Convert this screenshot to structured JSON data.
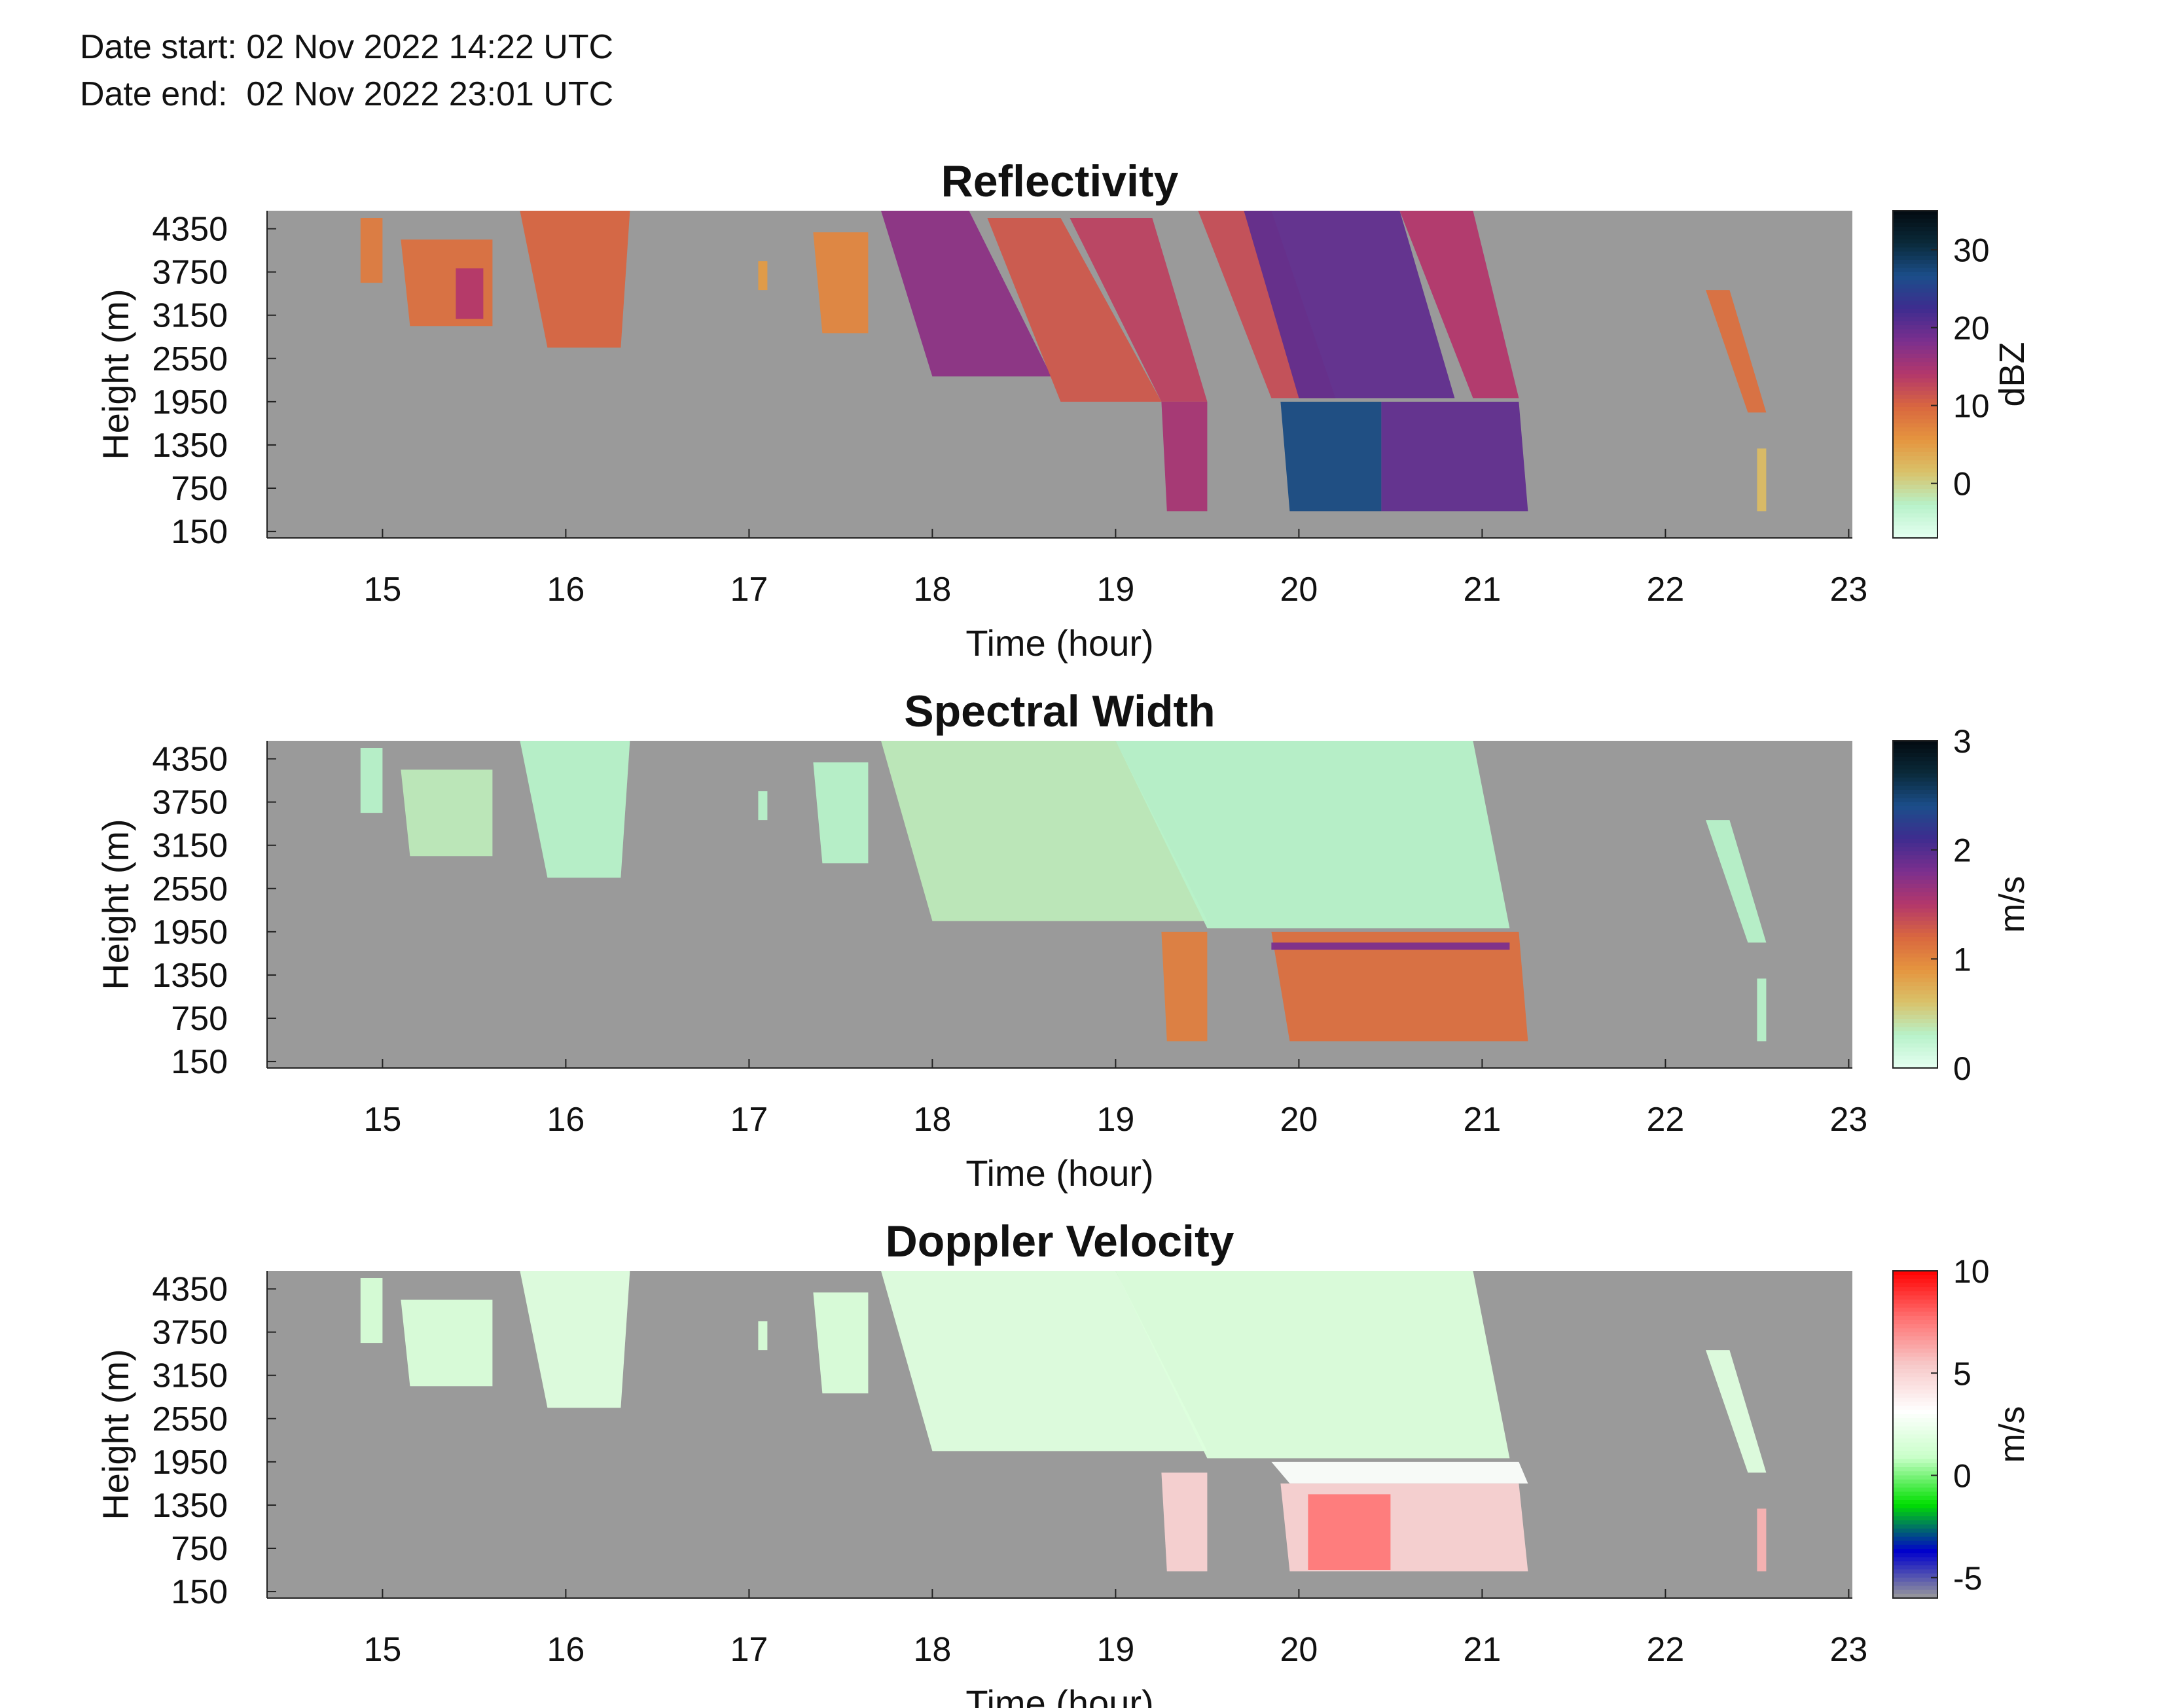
{
  "header": {
    "date_start": "Date start: 02 Nov 2022 14:22 UTC",
    "date_end": "Date end:  02 Nov 2022 23:01 UTC"
  },
  "chart_data": [
    {
      "type": "heatmap",
      "title": "Reflectivity",
      "xlabel": "Time (hour)",
      "ylabel": "Height (m)",
      "xlim": [
        14.37,
        23.02
      ],
      "ylim": [
        60,
        4600
      ],
      "x_ticks": [
        15,
        16,
        17,
        18,
        19,
        20,
        21,
        22,
        23
      ],
      "y_ticks": [
        150,
        750,
        1350,
        1950,
        2550,
        3150,
        3750,
        4350
      ],
      "colorbar": {
        "label": "dBZ",
        "range": [
          -7,
          35
        ],
        "ticks": [
          0,
          10,
          20,
          30
        ],
        "colormap": [
          "#e6fff2",
          "#b7f2c9",
          "#d9c26a",
          "#e5953f",
          "#d9673f",
          "#b3376b",
          "#7c2f8e",
          "#3e2c8f",
          "#1b4e8a",
          "#0a2a3a",
          "#020a10"
        ]
      },
      "regions": [
        {
          "t0": 14.88,
          "t1": 15.0,
          "tb0": 14.88,
          "tb1": 15.0,
          "h_top": 4500,
          "h_bot": 3600,
          "value": 8
        },
        {
          "t0": 15.1,
          "t1": 15.6,
          "tb0": 15.15,
          "tb1": 15.6,
          "h_top": 4200,
          "h_bot": 3000,
          "value": 9
        },
        {
          "t0": 15.4,
          "t1": 15.55,
          "tb0": 15.4,
          "tb1": 15.55,
          "h_top": 3800,
          "h_bot": 3100,
          "value": 14
        },
        {
          "t0": 15.75,
          "t1": 16.35,
          "tb0": 15.9,
          "tb1": 16.3,
          "h_top": 4600,
          "h_bot": 2700,
          "value": 10
        },
        {
          "t0": 17.05,
          "t1": 17.1,
          "tb0": 17.05,
          "tb1": 17.1,
          "h_top": 3900,
          "h_bot": 3500,
          "value": 5
        },
        {
          "t0": 17.35,
          "t1": 17.65,
          "tb0": 17.4,
          "tb1": 17.65,
          "h_top": 4300,
          "h_bot": 2900,
          "value": 7
        },
        {
          "t0": 17.72,
          "t1": 18.2,
          "tb0": 18.0,
          "tb1": 18.65,
          "h_top": 4600,
          "h_bot": 2300,
          "value": 17
        },
        {
          "t0": 18.3,
          "t1": 18.7,
          "tb0": 18.7,
          "tb1": 19.25,
          "h_top": 4500,
          "h_bot": 1950,
          "value": 11
        },
        {
          "t0": 18.75,
          "t1": 19.2,
          "tb0": 19.25,
          "tb1": 19.5,
          "h_top": 4500,
          "h_bot": 1950,
          "value": 13
        },
        {
          "t0": 19.25,
          "t1": 19.5,
          "tb0": 19.28,
          "tb1": 19.5,
          "h_top": 1950,
          "h_bot": 430,
          "value": 15
        },
        {
          "t0": 19.45,
          "t1": 19.85,
          "tb0": 19.85,
          "tb1": 20.2,
          "h_top": 4600,
          "h_bot": 2000,
          "value": 12
        },
        {
          "t0": 19.7,
          "t1": 20.55,
          "tb0": 20.0,
          "tb1": 20.85,
          "h_top": 4600,
          "h_bot": 2000,
          "value": 20
        },
        {
          "t0": 20.55,
          "t1": 20.95,
          "tb0": 20.95,
          "tb1": 21.2,
          "h_top": 4600,
          "h_bot": 2000,
          "value": 14
        },
        {
          "t0": 19.9,
          "t1": 20.45,
          "tb0": 19.95,
          "tb1": 20.45,
          "h_top": 1950,
          "h_bot": 430,
          "value": 27
        },
        {
          "t0": 20.45,
          "t1": 21.2,
          "tb0": 20.45,
          "tb1": 21.25,
          "h_top": 1950,
          "h_bot": 430,
          "value": 20
        },
        {
          "t0": 22.22,
          "t1": 22.35,
          "tb0": 22.45,
          "tb1": 22.55,
          "h_top": 3500,
          "h_bot": 1800,
          "value": 9
        },
        {
          "t0": 22.5,
          "t1": 22.55,
          "tb0": 22.5,
          "tb1": 22.55,
          "h_top": 1300,
          "h_bot": 430,
          "value": 2
        }
      ]
    },
    {
      "type": "heatmap",
      "title": "Spectral Width",
      "xlabel": "Time (hour)",
      "ylabel": "Height (m)",
      "xlim": [
        14.37,
        23.02
      ],
      "ylim": [
        60,
        4600
      ],
      "x_ticks": [
        15,
        16,
        17,
        18,
        19,
        20,
        21,
        22,
        23
      ],
      "y_ticks": [
        150,
        750,
        1350,
        1950,
        2550,
        3150,
        3750,
        4350
      ],
      "colorbar": {
        "label": "m/s",
        "range": [
          0,
          3
        ],
        "ticks": [
          0,
          1,
          2,
          3
        ],
        "colormap": [
          "#e6fff2",
          "#b7f2c9",
          "#d9c26a",
          "#e5953f",
          "#d9673f",
          "#b3376b",
          "#7c2f8e",
          "#3e2c8f",
          "#1b4e8a",
          "#0a2a3a",
          "#020a10"
        ]
      },
      "regions": [
        {
          "t0": 14.88,
          "t1": 15.0,
          "tb0": 14.88,
          "tb1": 15.0,
          "h_top": 4500,
          "h_bot": 3600,
          "value": 0.3
        },
        {
          "t0": 15.1,
          "t1": 15.6,
          "tb0": 15.15,
          "tb1": 15.6,
          "h_top": 4200,
          "h_bot": 3000,
          "value": 0.35
        },
        {
          "t0": 15.75,
          "t1": 16.35,
          "tb0": 15.9,
          "tb1": 16.3,
          "h_top": 4600,
          "h_bot": 2700,
          "value": 0.3
        },
        {
          "t0": 17.05,
          "t1": 17.1,
          "tb0": 17.05,
          "tb1": 17.1,
          "h_top": 3900,
          "h_bot": 3500,
          "value": 0.3
        },
        {
          "t0": 17.35,
          "t1": 17.65,
          "tb0": 17.4,
          "tb1": 17.65,
          "h_top": 4300,
          "h_bot": 2900,
          "value": 0.3
        },
        {
          "t0": 17.72,
          "t1": 19.0,
          "tb0": 18.0,
          "tb1": 19.5,
          "h_top": 4600,
          "h_bot": 2100,
          "value": 0.35
        },
        {
          "t0": 19.0,
          "t1": 20.95,
          "tb0": 19.5,
          "tb1": 21.15,
          "h_top": 4600,
          "h_bot": 2000,
          "value": 0.3
        },
        {
          "t0": 19.25,
          "t1": 19.5,
          "tb0": 19.28,
          "tb1": 19.5,
          "h_top": 1950,
          "h_bot": 430,
          "value": 1.05
        },
        {
          "t0": 19.85,
          "t1": 21.2,
          "tb0": 19.95,
          "tb1": 21.25,
          "h_top": 1950,
          "h_bot": 430,
          "value": 1.15
        },
        {
          "t0": 19.85,
          "t1": 21.15,
          "tb0": 19.85,
          "tb1": 21.15,
          "h_top": 1800,
          "h_bot": 1700,
          "value": 1.8
        },
        {
          "t0": 22.22,
          "t1": 22.35,
          "tb0": 22.45,
          "tb1": 22.55,
          "h_top": 3500,
          "h_bot": 1800,
          "value": 0.3
        },
        {
          "t0": 22.5,
          "t1": 22.55,
          "tb0": 22.5,
          "tb1": 22.55,
          "h_top": 1300,
          "h_bot": 430,
          "value": 0.3
        }
      ]
    },
    {
      "type": "heatmap",
      "title": "Doppler Velocity",
      "xlabel": "Time (hour)",
      "ylabel": "Height (m)",
      "xlim": [
        14.37,
        23.02
      ],
      "ylim": [
        60,
        4600
      ],
      "x_ticks": [
        15,
        16,
        17,
        18,
        19,
        20,
        21,
        22,
        23
      ],
      "y_ticks": [
        150,
        750,
        1350,
        1950,
        2550,
        3150,
        3750,
        4350
      ],
      "colorbar": {
        "label": "m/s",
        "range": [
          -6,
          10
        ],
        "ticks": [
          -5,
          0,
          5,
          10
        ],
        "colormap": [
          "#9a9a9a",
          "#0000cc",
          "#00e000",
          "#c8ffc8",
          "#ffffff",
          "#f7c8c8",
          "#ff7070",
          "#ff0000"
        ]
      },
      "regions": [
        {
          "t0": 14.88,
          "t1": 15.0,
          "tb0": 14.88,
          "tb1": 15.0,
          "h_top": 4500,
          "h_bot": 3600,
          "value": 1.5
        },
        {
          "t0": 15.1,
          "t1": 15.6,
          "tb0": 15.15,
          "tb1": 15.6,
          "h_top": 4200,
          "h_bot": 3000,
          "value": 1.6
        },
        {
          "t0": 15.75,
          "t1": 16.35,
          "tb0": 15.9,
          "tb1": 16.3,
          "h_top": 4600,
          "h_bot": 2700,
          "value": 1.8
        },
        {
          "t0": 17.05,
          "t1": 17.1,
          "tb0": 17.05,
          "tb1": 17.1,
          "h_top": 3900,
          "h_bot": 3500,
          "value": 1.5
        },
        {
          "t0": 17.35,
          "t1": 17.65,
          "tb0": 17.4,
          "tb1": 17.65,
          "h_top": 4300,
          "h_bot": 2900,
          "value": 1.6
        },
        {
          "t0": 17.72,
          "t1": 19.0,
          "tb0": 18.0,
          "tb1": 19.5,
          "h_top": 4600,
          "h_bot": 2100,
          "value": 1.8
        },
        {
          "t0": 19.0,
          "t1": 20.95,
          "tb0": 19.5,
          "tb1": 21.15,
          "h_top": 4600,
          "h_bot": 2000,
          "value": 1.7
        },
        {
          "t0": 19.25,
          "t1": 19.5,
          "tb0": 19.28,
          "tb1": 19.5,
          "h_top": 1800,
          "h_bot": 430,
          "value": 5.0
        },
        {
          "t0": 19.85,
          "t1": 21.2,
          "tb0": 19.95,
          "tb1": 21.25,
          "h_top": 1950,
          "h_bot": 1650,
          "value": 3.0
        },
        {
          "t0": 19.9,
          "t1": 21.2,
          "tb0": 19.95,
          "tb1": 21.25,
          "h_top": 1650,
          "h_bot": 430,
          "value": 5.0
        },
        {
          "t0": 20.05,
          "t1": 20.5,
          "tb0": 20.05,
          "tb1": 20.5,
          "h_top": 1500,
          "h_bot": 450,
          "value": 7.5
        },
        {
          "t0": 22.22,
          "t1": 22.35,
          "tb0": 22.45,
          "tb1": 22.55,
          "h_top": 3500,
          "h_bot": 1800,
          "value": 1.8
        },
        {
          "t0": 22.5,
          "t1": 22.55,
          "tb0": 22.5,
          "tb1": 22.55,
          "h_top": 1300,
          "h_bot": 430,
          "value": 6.0
        }
      ]
    }
  ],
  "colors": {
    "no_data": "#9a9a9a",
    "axis": "#222222"
  }
}
